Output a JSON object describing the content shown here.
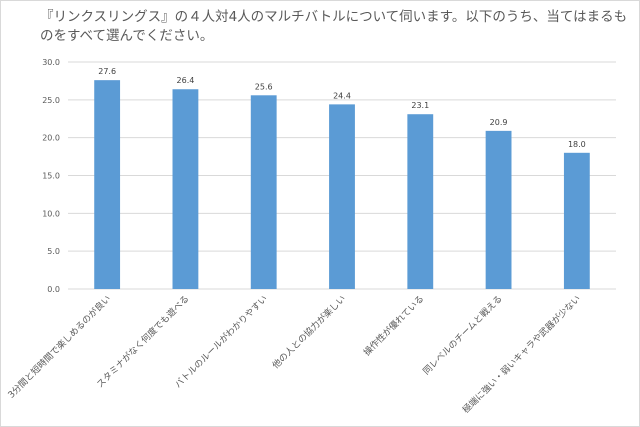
{
  "chart_data": {
    "type": "bar",
    "title": "『リンクスリングス』の４人対4人のマルチバトルについて伺います。以下のうち、当てはまるものをすべて選んでください。",
    "categories": [
      "3分間と短時間で楽しめるのが良い",
      "スタミナがなく何度でも遊べる",
      "バトルのルールがわかりやすい",
      "他の人との協力が楽しい",
      "操作性が優れている",
      "同レベルのチームと戦える",
      "極端に強い・弱いキャラや武器が少ない"
    ],
    "values": [
      27.6,
      26.4,
      25.6,
      24.4,
      23.1,
      20.9,
      18.0
    ],
    "value_labels": [
      "27.6",
      "26.4",
      "25.6",
      "24.4",
      "23.1",
      "20.9",
      "18.0"
    ],
    "ylim": [
      0,
      30
    ],
    "yticks": [
      "0.0",
      "5.0",
      "10.0",
      "15.0",
      "20.0",
      "25.0",
      "30.0"
    ],
    "grid": true,
    "bar_color": "#5b9bd5",
    "grid_color": "#d9d9d9"
  }
}
